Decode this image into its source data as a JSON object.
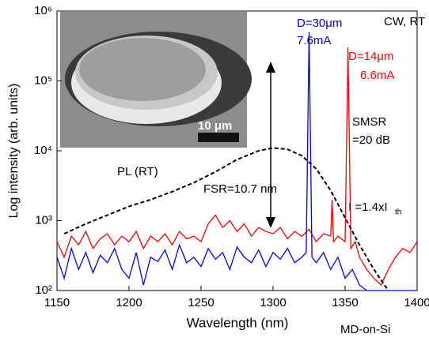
{
  "chart_data": {
    "type": "line",
    "log_y": true,
    "xlabel": "Wavelength (nm)",
    "ylabel": "Log intensity (arb. units)",
    "xlim": [
      1150,
      1400
    ],
    "xticks": [
      1150,
      1200,
      1250,
      1300,
      1350,
      1400
    ],
    "ylim": [
      100,
      1000000
    ],
    "yticks": [
      {
        "value": 100,
        "label": "10²"
      },
      {
        "value": 1000,
        "label": "10³"
      },
      {
        "value": 10000,
        "label": "10⁴"
      },
      {
        "value": 100000,
        "label": "10⁵"
      },
      {
        "value": 1000000,
        "label": "10⁶"
      }
    ],
    "series": [
      {
        "color": "#ff0000",
        "style": "solid",
        "x": [
          1150,
          1155,
          1160,
          1165,
          1170,
          1175,
          1180,
          1185,
          1190,
          1195,
          1200,
          1205,
          1210,
          1215,
          1220,
          1225,
          1230,
          1235,
          1240,
          1245,
          1250,
          1255,
          1260,
          1265,
          1270,
          1275,
          1280,
          1285,
          1290,
          1295,
          1300,
          1305,
          1310,
          1315,
          1320,
          1325,
          1330,
          1335,
          1340,
          1341,
          1342,
          1345,
          1350,
          1352,
          1354,
          1357,
          1360,
          1365,
          1370,
          1375,
          1380,
          1385,
          1390,
          1395,
          1400
        ],
        "values": [
          500,
          300,
          600,
          450,
          700,
          400,
          550,
          650,
          450,
          600,
          500,
          700,
          400,
          600,
          500,
          650,
          450,
          700,
          550,
          600,
          500,
          900,
          1200,
          800,
          1000,
          700,
          900,
          600,
          800,
          700,
          650,
          800,
          550,
          700,
          600,
          750,
          500,
          650,
          600,
          2000,
          500,
          600,
          500,
          300000,
          400,
          500,
          300,
          200,
          150,
          120,
          200,
          300,
          400,
          350,
          500
        ]
      },
      {
        "color": "#0000ff",
        "style": "solid",
        "x": [
          1150,
          1155,
          1160,
          1165,
          1170,
          1175,
          1180,
          1185,
          1190,
          1195,
          1200,
          1205,
          1210,
          1215,
          1220,
          1225,
          1230,
          1235,
          1240,
          1245,
          1250,
          1255,
          1260,
          1265,
          1270,
          1275,
          1280,
          1285,
          1290,
          1295,
          1300,
          1305,
          1310,
          1315,
          1320,
          1323,
          1325,
          1327,
          1330,
          1335,
          1340,
          1345,
          1350,
          1355,
          1360,
          1365,
          1370,
          1375,
          1380,
          1385,
          1390,
          1395,
          1400
        ],
        "values": [
          300,
          150,
          400,
          200,
          350,
          180,
          320,
          250,
          400,
          200,
          150,
          350,
          120,
          300,
          260,
          380,
          200,
          450,
          250,
          300,
          220,
          400,
          280,
          350,
          200,
          420,
          300,
          250,
          380,
          220,
          350,
          280,
          400,
          250,
          300,
          350,
          500000,
          300,
          250,
          350,
          200,
          300,
          150,
          200,
          120,
          100,
          100,
          100,
          100,
          100,
          100,
          100,
          100
        ]
      },
      {
        "color": "#000000",
        "style": "dashed",
        "x": [
          1155,
          1170,
          1185,
          1200,
          1215,
          1230,
          1245,
          1260,
          1275,
          1290,
          1300,
          1310,
          1320,
          1330,
          1340,
          1350,
          1360,
          1370,
          1380
        ],
        "values": [
          650,
          900,
          1200,
          1600,
          2000,
          2600,
          3500,
          5000,
          7500,
          10000,
          11000,
          10500,
          8500,
          5500,
          2700,
          1100,
          450,
          200,
          100
        ]
      }
    ],
    "annotations": [
      "D=30μm",
      "7.6mA",
      "CW, RT",
      "D=14μm",
      "6.6mA",
      "SMSR",
      "=20 dB",
      "I =1.4xI",
      "th",
      "PL (RT)",
      "FSR=10.7 nm",
      "10 μm",
      "MD-on-Si"
    ]
  }
}
